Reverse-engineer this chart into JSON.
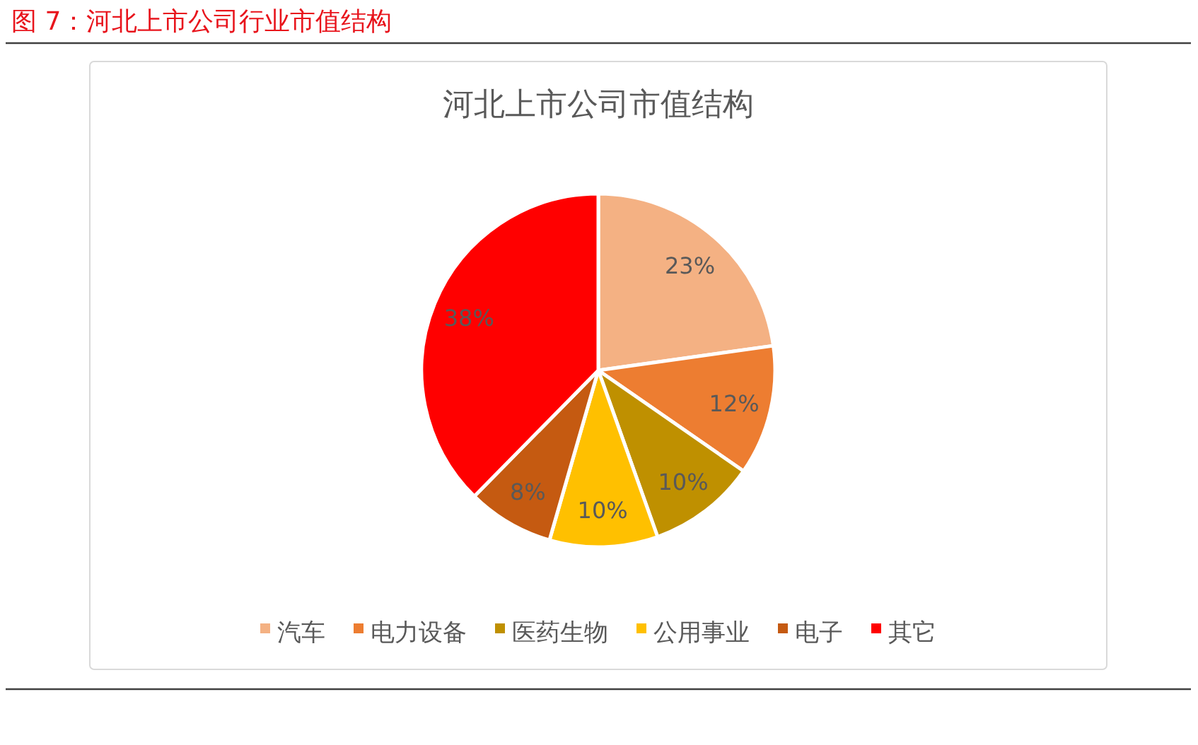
{
  "chart_data": {
    "type": "pie",
    "title": "河北上市公司市值结构",
    "categories": [
      "汽车",
      "电力设备",
      "医药生物",
      "公用事业",
      "电子",
      "其它"
    ],
    "values": [
      23,
      12,
      10,
      10,
      8,
      38
    ],
    "colors": [
      "#f4b183",
      "#ed7d31",
      "#bf9000",
      "#ffc000",
      "#c55a11",
      "#ff0000"
    ],
    "value_labels": [
      "23%",
      "12%",
      "10%",
      "10%",
      "8%",
      "38%"
    ],
    "legend": "bottom",
    "annotations": [
      "图 7：河北上市公司行业市值结构"
    ]
  }
}
